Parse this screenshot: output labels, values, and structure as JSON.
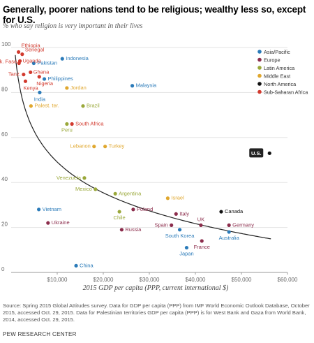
{
  "title": "Generally, poorer nations tend to be religious; wealthy less so, except for U.S.",
  "subtitle": "% who say religion is very important in their lives",
  "source": "Source: Spring 2015 Global Attitudes survey. Data for GDP per capita (PPP) from IMF World Economic Outlook Database, October 2015, accessed Oct. 29, 2015. Data for Palestinian territories GDP per capita (PPP) is for West Bank and Gaza from World Bank, 2014, accessed Oct. 29, 2015.",
  "brand": "PEW RESEARCH CENTER",
  "chart_data": {
    "type": "scatter",
    "xlabel": "2015 GDP per capita (PPP, current international $)",
    "ylabel": "",
    "xlim": [
      0,
      60000
    ],
    "ylim": [
      0,
      100
    ],
    "x_ticks": [
      {
        "value": 10000,
        "label": "$10,000"
      },
      {
        "value": 20000,
        "label": "$20,000"
      },
      {
        "value": 30000,
        "label": "$30,000"
      },
      {
        "value": 40000,
        "label": "$40,000"
      },
      {
        "value": 50000,
        "label": "$50,000"
      },
      {
        "value": 60000,
        "label": "$60,000"
      }
    ],
    "y_ticks": [
      0,
      20,
      40,
      60,
      80,
      100
    ],
    "legend_position": "right",
    "legend": [
      {
        "name": "Asia/Pacific",
        "color": "#2b7bb9"
      },
      {
        "name": "Europe",
        "color": "#8c2d4c"
      },
      {
        "name": "Latin America",
        "color": "#9aa83a"
      },
      {
        "name": "Middle East",
        "color": "#e0a72e"
      },
      {
        "name": "North America",
        "color": "#111111"
      },
      {
        "name": "Sub-Saharan Africa",
        "color": "#d23a2e"
      }
    ],
    "points": [
      {
        "label": "Ethiopia",
        "region": "Sub-Saharan Africa",
        "x": 1600,
        "y": 98
      },
      {
        "label": "Senegal",
        "region": "Sub-Saharan Africa",
        "x": 2400,
        "y": 97
      },
      {
        "label": "Burk. Faso",
        "region": "Sub-Saharan Africa",
        "x": 1700,
        "y": 93
      },
      {
        "label": "Uganda",
        "region": "Sub-Saharan Africa",
        "x": 1900,
        "y": 94
      },
      {
        "label": "Pakistan",
        "region": "Asia/Pacific",
        "x": 4900,
        "y": 93
      },
      {
        "label": "Indonesia",
        "region": "Asia/Pacific",
        "x": 11100,
        "y": 95
      },
      {
        "label": "Ghana",
        "region": "Sub-Saharan Africa",
        "x": 4200,
        "y": 89
      },
      {
        "label": "Tanz.",
        "region": "Sub-Saharan Africa",
        "x": 2700,
        "y": 88
      },
      {
        "label": "Philippines",
        "region": "Asia/Pacific",
        "x": 7200,
        "y": 86
      },
      {
        "label": "Nigeria",
        "region": "Sub-Saharan Africa",
        "x": 6100,
        "y": 87
      },
      {
        "label": "Kenya",
        "region": "Sub-Saharan Africa",
        "x": 3100,
        "y": 85
      },
      {
        "label": "Malaysia",
        "region": "Asia/Pacific",
        "x": 26300,
        "y": 83
      },
      {
        "label": "Jordan",
        "region": "Middle East",
        "x": 12100,
        "y": 82
      },
      {
        "label": "India",
        "region": "Asia/Pacific",
        "x": 6200,
        "y": 80
      },
      {
        "label": "Palest. ter.",
        "region": "Middle East",
        "x": 4300,
        "y": 74
      },
      {
        "label": "Brazil",
        "region": "Latin America",
        "x": 15600,
        "y": 74
      },
      {
        "label": "South Africa",
        "region": "Sub-Saharan Africa",
        "x": 13200,
        "y": 66
      },
      {
        "label": "Peru",
        "region": "Latin America",
        "x": 12100,
        "y": 66
      },
      {
        "label": "Lebanon",
        "region": "Middle East",
        "x": 18000,
        "y": 56
      },
      {
        "label": "Turkey",
        "region": "Middle East",
        "x": 20400,
        "y": 56
      },
      {
        "label": "U.S.",
        "region": "North America",
        "x": 56100,
        "y": 53
      },
      {
        "label": "Venezuela",
        "region": "Latin America",
        "x": 15900,
        "y": 42
      },
      {
        "label": "Mexico",
        "region": "Latin America",
        "x": 18300,
        "y": 37
      },
      {
        "label": "Argentina",
        "region": "Latin America",
        "x": 22600,
        "y": 35
      },
      {
        "label": "Israel",
        "region": "Middle East",
        "x": 34000,
        "y": 33
      },
      {
        "label": "Vietnam",
        "region": "Asia/Pacific",
        "x": 6000,
        "y": 28
      },
      {
        "label": "Chile",
        "region": "Latin America",
        "x": 23500,
        "y": 27
      },
      {
        "label": "Poland",
        "region": "Europe",
        "x": 26500,
        "y": 28
      },
      {
        "label": "Canada",
        "region": "North America",
        "x": 45600,
        "y": 27
      },
      {
        "label": "Italy",
        "region": "Europe",
        "x": 35800,
        "y": 26
      },
      {
        "label": "Ukraine",
        "region": "Europe",
        "x": 8000,
        "y": 22
      },
      {
        "label": "UK",
        "region": "Europe",
        "x": 41200,
        "y": 21
      },
      {
        "label": "Spain",
        "region": "Europe",
        "x": 34800,
        "y": 21
      },
      {
        "label": "Germany",
        "region": "Europe",
        "x": 47300,
        "y": 21
      },
      {
        "label": "Russia",
        "region": "Europe",
        "x": 24000,
        "y": 19
      },
      {
        "label": "South Korea",
        "region": "Asia/Pacific",
        "x": 36600,
        "y": 19
      },
      {
        "label": "Australia",
        "region": "Asia/Pacific",
        "x": 47300,
        "y": 18
      },
      {
        "label": "France",
        "region": "Europe",
        "x": 41400,
        "y": 14
      },
      {
        "label": "Japan",
        "region": "Asia/Pacific",
        "x": 38100,
        "y": 11
      },
      {
        "label": "China",
        "region": "Asia/Pacific",
        "x": 14100,
        "y": 3
      }
    ],
    "trend_line": {
      "type": "log",
      "intercept": 231,
      "slope": -19.75
    }
  }
}
